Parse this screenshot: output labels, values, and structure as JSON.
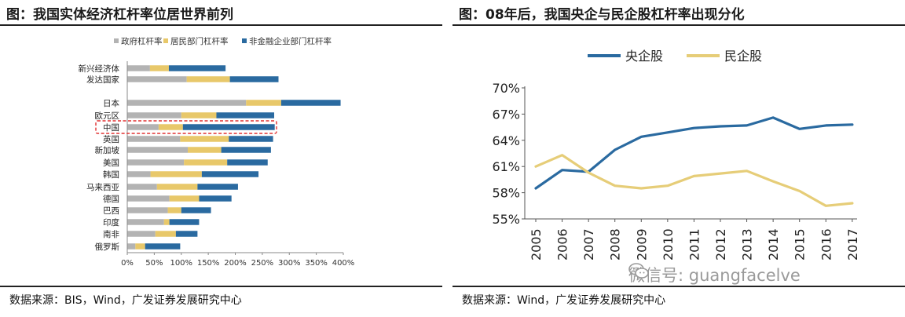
{
  "left": {
    "title": "图：我国实体经济杠杆率位居世界前列",
    "source": "数据来源：BIS，Wind，广发证券发展研究中心"
  },
  "right": {
    "title": "图：08年后，我国央企与民企股杠杆率出现分化",
    "source": "数据来源：Wind，广发证券发展研究中心"
  },
  "watermark": "微信号: guangfacelve",
  "colors": {
    "gov": "#b3b3b3",
    "household": "#e8c86a",
    "corporate": "#2a6aa0",
    "soe": "#2a6aa0",
    "private": "#e6cd78",
    "highlight": "#e03030"
  },
  "chart_data": [
    {
      "type": "bar",
      "orientation": "horizontal",
      "stacked": true,
      "categories": [
        "新兴经济体",
        "发达国家",
        "日本",
        "欧元区",
        "中国",
        "英国",
        "新加坡",
        "美国",
        "韩国",
        "马来西亚",
        "德国",
        "巴西",
        "印度",
        "南非",
        "俄罗斯"
      ],
      "series": [
        {
          "name": "政府杠杆率",
          "values": [
            42,
            110,
            220,
            100,
            58,
            98,
            112,
            105,
            43,
            55,
            78,
            75,
            68,
            52,
            15
          ]
        },
        {
          "name": "居民部门杠杆率",
          "values": [
            35,
            80,
            65,
            65,
            45,
            90,
            62,
            80,
            95,
            75,
            55,
            25,
            10,
            38,
            18
          ]
        },
        {
          "name": "非金融企业部门杠杆率",
          "values": [
            105,
            90,
            110,
            107,
            170,
            82,
            92,
            75,
            105,
            75,
            60,
            55,
            55,
            40,
            65
          ]
        }
      ],
      "highlighted_category": "中国",
      "x_ticks": [
        "0%",
        "50%",
        "100%",
        "150%",
        "200%",
        "250%",
        "300%",
        "350%",
        "400%"
      ],
      "xlim": [
        0,
        400
      ],
      "legend_position": "top"
    },
    {
      "type": "line",
      "x": [
        "2005",
        "2006",
        "2007",
        "2008",
        "2009",
        "2010",
        "2011",
        "2012",
        "2013",
        "2014",
        "2015",
        "2016",
        "2017"
      ],
      "series": [
        {
          "name": "央企股",
          "values": [
            58.5,
            60.6,
            60.4,
            62.9,
            64.4,
            64.9,
            65.4,
            65.6,
            65.7,
            66.6,
            65.3,
            65.7,
            65.8
          ]
        },
        {
          "name": "民企股",
          "values": [
            61.0,
            62.3,
            60.3,
            58.8,
            58.5,
            58.8,
            59.9,
            60.2,
            60.5,
            59.3,
            58.2,
            56.5,
            56.8
          ]
        }
      ],
      "y_ticks": [
        "55%",
        "58%",
        "61%",
        "64%",
        "67%",
        "70%"
      ],
      "ylim": [
        55,
        70
      ],
      "legend_position": "top"
    }
  ]
}
